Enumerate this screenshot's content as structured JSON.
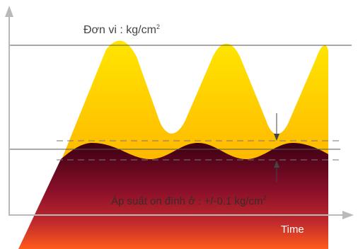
{
  "labels": {
    "unit_prefix": "Đơn vi : kg/cm",
    "unit_suffix": "2",
    "pressure_prefix": "Áp suất on đình  ở : +/-0.1 kg/cm",
    "pressure_suffix": "2",
    "time": "Time"
  },
  "colors": {
    "axis": "#b9b9b9",
    "line": "#555555",
    "dashed": "#777777",
    "yellow_top": "#ffe600",
    "yellow_bottom": "#ffc000",
    "red_top": "#3c0010",
    "red_mid": "#a01b2a",
    "red_bottom": "#ff5a1e"
  }
}
